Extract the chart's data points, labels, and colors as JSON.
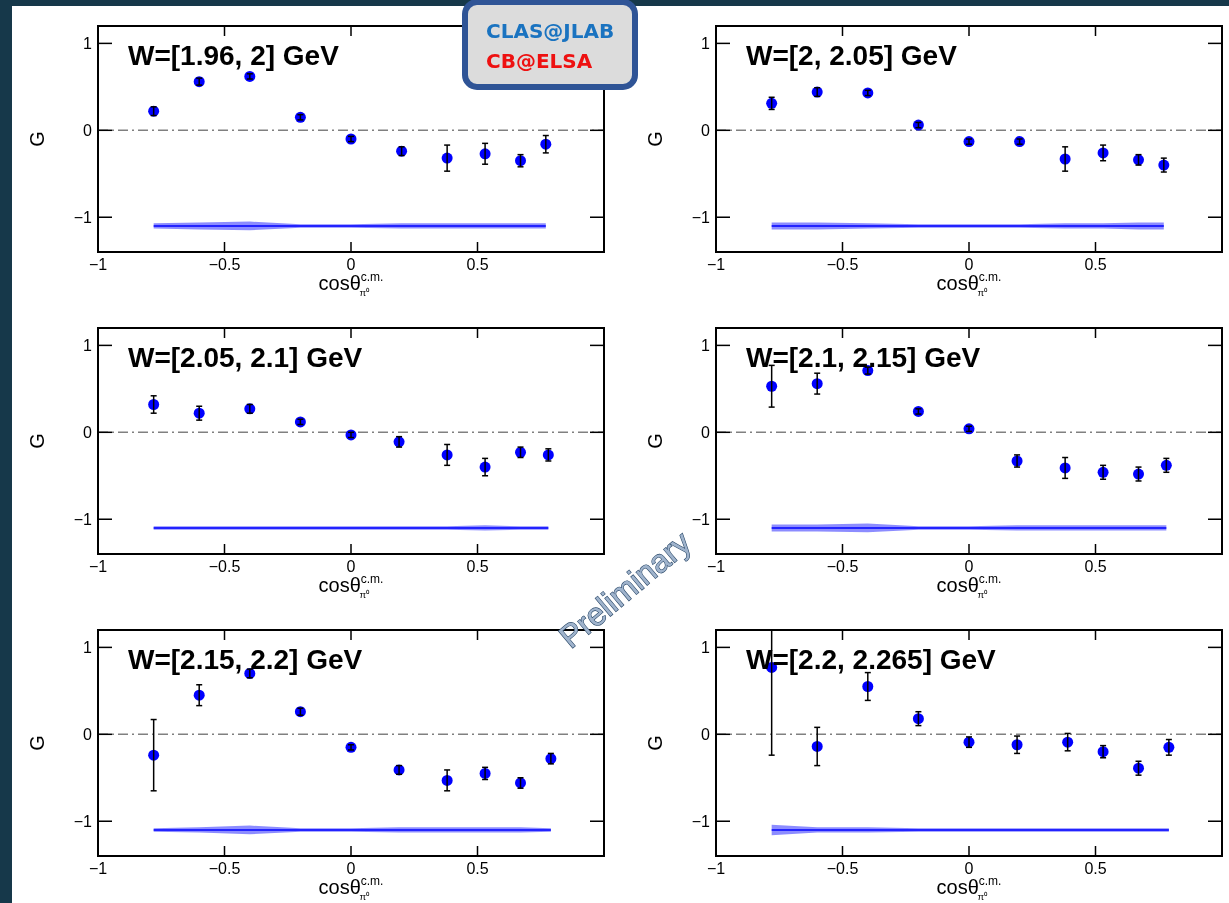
{
  "chart_data": [
    {
      "type": "scatter",
      "title": "W=[1.96, 2] GeV",
      "xlabel": "cosθ$^{c.m.}$$_{π⁰}$",
      "ylabel": "G",
      "xlim": [
        -1,
        1
      ],
      "ylim": [
        -1.4,
        1.2
      ],
      "xticks": [
        -1,
        -0.5,
        0,
        0.5
      ],
      "yticks": [
        -1,
        0,
        1
      ],
      "ref_lines": [
        {
          "axis": "y",
          "value": 0,
          "color": "#808080",
          "line_style": "dashed"
        }
      ],
      "annotations": [
        "CLAS@JLAB",
        "CB@ELSA",
        "Preliminary"
      ],
      "series": [
        {
          "type": "scatter",
          "color": "#0000ff",
          "x": [
            -0.78,
            -0.6,
            -0.4,
            -0.2,
            0,
            0.2,
            0.38,
            0.53,
            0.67,
            0.77
          ],
          "marker": "circle",
          "values": [
            0.22,
            0.56,
            0.62,
            0.15,
            -0.1,
            -0.24,
            -0.32,
            -0.27,
            -0.35,
            -0.16
          ],
          "errors": [
            0.05,
            0.04,
            0.03,
            0.03,
            0.03,
            0.05,
            0.15,
            0.12,
            0.07,
            0.1
          ]
        },
        {
          "type": "line",
          "color": "#0000ff",
          "x": [
            -0.78,
            -0.6,
            -0.4,
            -0.2,
            0,
            0.2,
            0.38,
            0.53,
            0.67,
            0.77
          ],
          "values": [
            -1.1,
            -1.1,
            -1.1,
            -1.1,
            -1.1,
            -1.1,
            -1.1,
            -1.1,
            -1.1,
            -1.1
          ],
          "lower": [
            -1.13,
            -1.14,
            -1.15,
            -1.12,
            -1.12,
            -1.13,
            -1.13,
            -1.13,
            -1.13,
            -1.13
          ],
          "upper": [
            -1.07,
            -1.06,
            -1.05,
            -1.08,
            -1.08,
            -1.07,
            -1.07,
            -1.07,
            -1.07,
            -1.07
          ]
        }
      ]
    },
    {
      "type": "scatter",
      "title": "W=[2, 2.05] GeV",
      "xlabel": "cosθ$^{c.m.}$$_{π⁰}$",
      "ylabel": "G",
      "xlim": [
        -1,
        1
      ],
      "ylim": [
        -1.4,
        1.2
      ],
      "xticks": [
        -1,
        -0.5,
        0,
        0.5
      ],
      "yticks": [
        -1,
        0,
        1
      ],
      "ref_lines": [
        {
          "axis": "y",
          "value": 0,
          "color": "#808080",
          "line_style": "dashed"
        }
      ],
      "series": [
        {
          "type": "scatter",
          "color": "#0000ff",
          "x": [
            -0.78,
            -0.6,
            -0.4,
            -0.2,
            0,
            0.2,
            0.38,
            0.53,
            0.67,
            0.77
          ],
          "marker": "circle",
          "values": [
            0.31,
            0.44,
            0.43,
            0.06,
            -0.13,
            -0.13,
            -0.33,
            -0.26,
            -0.34,
            -0.4
          ],
          "errors": [
            0.07,
            0.05,
            0.03,
            0.03,
            0.03,
            0.03,
            0.14,
            0.09,
            0.06,
            0.08
          ]
        },
        {
          "type": "line",
          "color": "#0000ff",
          "x": [
            -0.78,
            -0.6,
            -0.4,
            -0.2,
            0,
            0.2,
            0.38,
            0.53,
            0.67,
            0.77
          ],
          "values": [
            -1.1,
            -1.1,
            -1.1,
            -1.1,
            -1.1,
            -1.1,
            -1.1,
            -1.1,
            -1.1,
            -1.1
          ],
          "lower": [
            -1.14,
            -1.14,
            -1.13,
            -1.12,
            -1.12,
            -1.12,
            -1.13,
            -1.13,
            -1.14,
            -1.14
          ],
          "upper": [
            -1.06,
            -1.06,
            -1.07,
            -1.08,
            -1.08,
            -1.08,
            -1.07,
            -1.07,
            -1.06,
            -1.06
          ]
        }
      ]
    },
    {
      "type": "scatter",
      "title": "W=[2.05, 2.1] GeV",
      "xlabel": "cosθ$^{c.m.}$$_{π⁰}$",
      "ylabel": "G",
      "xlim": [
        -1,
        1
      ],
      "ylim": [
        -1.4,
        1.2
      ],
      "xticks": [
        -1,
        -0.5,
        0,
        0.5
      ],
      "yticks": [
        -1,
        0,
        1
      ],
      "ref_lines": [
        {
          "axis": "y",
          "value": 0,
          "color": "#808080",
          "line_style": "dashed"
        }
      ],
      "series": [
        {
          "type": "scatter",
          "color": "#0000ff",
          "x": [
            -0.78,
            -0.6,
            -0.4,
            -0.2,
            0,
            0.19,
            0.38,
            0.53,
            0.67,
            0.78
          ],
          "marker": "circle",
          "values": [
            0.32,
            0.22,
            0.27,
            0.12,
            -0.03,
            -0.11,
            -0.26,
            -0.4,
            -0.23,
            -0.26
          ],
          "errors": [
            0.1,
            0.08,
            0.05,
            0.03,
            0.03,
            0.06,
            0.12,
            0.1,
            0.06,
            0.07
          ]
        },
        {
          "type": "line",
          "color": "#0000ff",
          "x": [
            -0.78,
            -0.6,
            -0.4,
            -0.2,
            0,
            0.19,
            0.38,
            0.53,
            0.67,
            0.78
          ],
          "values": [
            -1.1,
            -1.1,
            -1.1,
            -1.1,
            -1.1,
            -1.1,
            -1.1,
            -1.1,
            -1.1,
            -1.1
          ],
          "lower": [
            -1.12,
            -1.12,
            -1.12,
            -1.12,
            -1.12,
            -1.12,
            -1.12,
            -1.13,
            -1.12,
            -1.12
          ],
          "upper": [
            -1.08,
            -1.08,
            -1.08,
            -1.08,
            -1.08,
            -1.08,
            -1.08,
            -1.07,
            -1.08,
            -1.08
          ]
        }
      ]
    },
    {
      "type": "scatter",
      "title": "W=[2.1, 2.15] GeV",
      "xlabel": "cosθ$^{c.m.}$$_{π⁰}$",
      "ylabel": "G",
      "xlim": [
        -1,
        1
      ],
      "ylim": [
        -1.4,
        1.2
      ],
      "xticks": [
        -1,
        -0.5,
        0,
        0.5
      ],
      "yticks": [
        -1,
        0,
        1
      ],
      "ref_lines": [
        {
          "axis": "y",
          "value": 0,
          "color": "#808080",
          "line_style": "dashed"
        }
      ],
      "series": [
        {
          "type": "scatter",
          "color": "#0000ff",
          "x": [
            -0.78,
            -0.6,
            -0.4,
            -0.2,
            0,
            0.19,
            0.38,
            0.53,
            0.67,
            0.78
          ],
          "marker": "circle",
          "values": [
            0.53,
            0.56,
            0.71,
            0.24,
            0.04,
            -0.33,
            -0.41,
            -0.46,
            -0.48,
            -0.38
          ],
          "errors": [
            0.24,
            0.12,
            0.04,
            0.03,
            0.03,
            0.07,
            0.12,
            0.08,
            0.08,
            0.08
          ]
        },
        {
          "type": "line",
          "color": "#0000ff",
          "x": [
            -0.78,
            -0.6,
            -0.4,
            -0.2,
            0,
            0.19,
            0.38,
            0.53,
            0.67,
            0.78
          ],
          "values": [
            -1.1,
            -1.1,
            -1.1,
            -1.1,
            -1.1,
            -1.1,
            -1.1,
            -1.1,
            -1.1,
            -1.1
          ],
          "lower": [
            -1.14,
            -1.14,
            -1.15,
            -1.12,
            -1.12,
            -1.13,
            -1.13,
            -1.13,
            -1.13,
            -1.13
          ],
          "upper": [
            -1.06,
            -1.06,
            -1.05,
            -1.08,
            -1.08,
            -1.07,
            -1.07,
            -1.07,
            -1.07,
            -1.07
          ]
        }
      ]
    },
    {
      "type": "scatter",
      "title": "W=[2.15, 2.2] GeV",
      "xlabel": "cosθ$^{c.m.}$$_{π⁰}$",
      "ylabel": "G",
      "xlim": [
        -1,
        1
      ],
      "ylim": [
        -1.4,
        1.2
      ],
      "xticks": [
        -1,
        -0.5,
        0,
        0.5
      ],
      "yticks": [
        -1,
        0,
        1
      ],
      "ref_lines": [
        {
          "axis": "y",
          "value": 0,
          "color": "#808080",
          "line_style": "dashed"
        }
      ],
      "series": [
        {
          "type": "scatter",
          "color": "#0000ff",
          "x": [
            -0.78,
            -0.6,
            -0.4,
            -0.2,
            0,
            0.19,
            0.38,
            0.53,
            0.67,
            0.79
          ],
          "marker": "circle",
          "values": [
            -0.24,
            0.45,
            0.7,
            0.26,
            -0.15,
            -0.41,
            -0.53,
            -0.45,
            -0.56,
            -0.28
          ],
          "errors": [
            0.41,
            0.12,
            0.05,
            0.04,
            0.03,
            0.05,
            0.12,
            0.07,
            0.06,
            0.06
          ]
        },
        {
          "type": "line",
          "color": "#0000ff",
          "x": [
            -0.78,
            -0.6,
            -0.4,
            -0.2,
            0,
            0.19,
            0.38,
            0.53,
            0.67,
            0.79
          ],
          "values": [
            -1.1,
            -1.1,
            -1.1,
            -1.1,
            -1.1,
            -1.1,
            -1.1,
            -1.1,
            -1.1,
            -1.1
          ],
          "lower": [
            -1.12,
            -1.13,
            -1.15,
            -1.12,
            -1.12,
            -1.13,
            -1.13,
            -1.13,
            -1.13,
            -1.12
          ],
          "upper": [
            -1.08,
            -1.07,
            -1.05,
            -1.08,
            -1.08,
            -1.07,
            -1.07,
            -1.07,
            -1.07,
            -1.08
          ]
        }
      ]
    },
    {
      "type": "scatter",
      "title": "W=[2.2, 2.265] GeV",
      "xlabel": "cosθ$^{c.m.}$$_{π⁰}$",
      "ylabel": "G",
      "xlim": [
        -1,
        1
      ],
      "ylim": [
        -1.4,
        1.2
      ],
      "xticks": [
        -1,
        -0.5,
        0,
        0.5
      ],
      "yticks": [
        -1,
        0,
        1
      ],
      "ref_lines": [
        {
          "axis": "y",
          "value": 0,
          "color": "#808080",
          "line_style": "dashed"
        }
      ],
      "series": [
        {
          "type": "scatter",
          "color": "#0000ff",
          "x": [
            -0.78,
            -0.6,
            -0.4,
            -0.2,
            0,
            0.19,
            0.39,
            0.53,
            0.67,
            0.79
          ],
          "marker": "circle",
          "values": [
            0.77,
            -0.14,
            0.55,
            0.18,
            -0.09,
            -0.12,
            -0.09,
            -0.2,
            -0.39,
            -0.15
          ],
          "errors": [
            [
              -0.24,
              1.2
            ],
            0.22,
            0.16,
            0.08,
            0.06,
            0.1,
            0.1,
            0.07,
            0.08,
            0.09
          ]
        },
        {
          "type": "line",
          "color": "#0000ff",
          "x": [
            -0.78,
            -0.6,
            -0.4,
            -0.2,
            0,
            0.19,
            0.39,
            0.53,
            0.67,
            0.79
          ],
          "values": [
            -1.1,
            -1.1,
            -1.1,
            -1.1,
            -1.1,
            -1.1,
            -1.1,
            -1.1,
            -1.1,
            -1.1
          ],
          "lower": [
            -1.16,
            -1.13,
            -1.13,
            -1.12,
            -1.12,
            -1.12,
            -1.12,
            -1.12,
            -1.12,
            -1.12
          ],
          "upper": [
            -1.04,
            -1.07,
            -1.07,
            -1.08,
            -1.08,
            -1.08,
            -1.08,
            -1.08,
            -1.08,
            -1.08
          ]
        }
      ]
    }
  ]
}
